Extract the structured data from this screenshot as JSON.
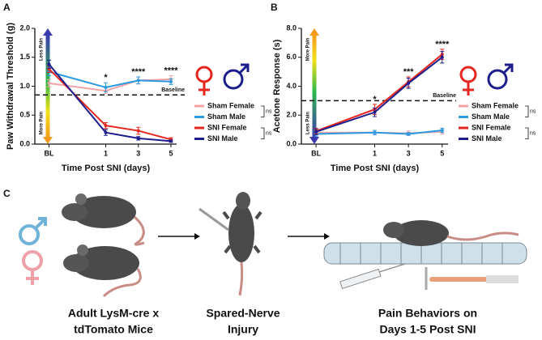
{
  "chart_data": [
    {
      "type": "line",
      "panel": "A",
      "ylabel": "Paw Withdrawal Threshold (g)",
      "xlabel": "Time Post SNI (days)",
      "categories": [
        "BL",
        "1",
        "3",
        "5"
      ],
      "ylim": [
        0,
        2
      ],
      "yticks": [
        {
          "value": 0,
          "label": "0.0"
        },
        0.5,
        {
          "value": 1,
          "label": "1.0"
        },
        1.5,
        {
          "value": 2,
          "label": "2.0"
        }
      ],
      "series": [
        {
          "name": "Sham Female",
          "color": "#f2a3a6",
          "values": [
            1.05,
            0.92,
            1.1,
            1.12
          ],
          "errors": [
            0.06,
            0.05,
            0.06,
            0.06
          ]
        },
        {
          "name": "Sham Male",
          "color": "#2b9ae0",
          "values": [
            1.25,
            0.98,
            1.1,
            1.08
          ],
          "errors": [
            0.07,
            0.08,
            0.06,
            0.05
          ]
        },
        {
          "name": "SNI Female",
          "color": "#e5261f",
          "values": [
            1.3,
            0.32,
            0.23,
            0.08
          ],
          "errors": [
            0.06,
            0.05,
            0.06,
            0.03
          ]
        },
        {
          "name": "SNI Male",
          "color": "#1d1d8c",
          "values": [
            1.38,
            0.2,
            0.1,
            0.05
          ],
          "errors": [
            0.07,
            0.05,
            0.03,
            0.02
          ]
        }
      ],
      "baseline": {
        "label": "Baseline",
        "value": 0.85
      },
      "annotations": [
        {
          "text": "*",
          "category": "1"
        },
        {
          "text": "****",
          "category": "3"
        },
        {
          "text": "****",
          "category": "5"
        }
      ],
      "arrow_labels": {
        "top": "Less Pain",
        "bottom": "More Pain"
      },
      "legend_brackets": [
        "ns",
        "ns"
      ]
    },
    {
      "type": "line",
      "panel": "B",
      "ylabel": "Acetone Response (s)",
      "xlabel": "Time Post SNI (days)",
      "categories": [
        "BL",
        "1",
        "3",
        "5"
      ],
      "ylim": [
        0,
        8
      ],
      "yticks": [
        {
          "value": 0,
          "label": "0.0"
        },
        {
          "value": 2,
          "label": "2.0"
        },
        {
          "value": 4,
          "label": "4.0"
        },
        {
          "value": 6,
          "label": "6.0"
        },
        {
          "value": 8,
          "label": "8.0"
        }
      ],
      "series": [
        {
          "name": "Sham Female",
          "color": "#f2a3a6",
          "values": [
            0.8,
            0.8,
            0.75,
            0.85
          ],
          "errors": [
            0.15,
            0.15,
            0.15,
            0.15
          ]
        },
        {
          "name": "Sham Male",
          "color": "#2b9ae0",
          "values": [
            0.7,
            0.8,
            0.7,
            0.95
          ],
          "errors": [
            0.15,
            0.15,
            0.1,
            0.15
          ]
        },
        {
          "name": "SNI Female",
          "color": "#e5261f",
          "values": [
            0.9,
            2.4,
            4.3,
            6.2
          ],
          "errors": [
            0.2,
            0.35,
            0.35,
            0.35
          ]
        },
        {
          "name": "SNI Male",
          "color": "#1d1d8c",
          "values": [
            0.85,
            2.2,
            4.2,
            6.0
          ],
          "errors": [
            0.2,
            0.3,
            0.35,
            0.4
          ]
        }
      ],
      "baseline": {
        "label": "Baseline",
        "value": 3
      },
      "annotations": [
        {
          "text": "*",
          "category": "1"
        },
        {
          "text": "***",
          "category": "3"
        },
        {
          "text": "****",
          "category": "5"
        }
      ],
      "arrow_labels": {
        "top": "More Pain",
        "bottom": "Less Pain"
      },
      "legend_brackets": [
        "ns",
        "ns"
      ]
    }
  ],
  "panel_c": {
    "panel": "C",
    "captions": [
      [
        "Adult LysM-cre x",
        "tdTomato Mice"
      ],
      [
        "Spared-Nerve",
        "Injury"
      ],
      [
        "Pain Behaviors on",
        "Days 1-5 Post SNI"
      ]
    ]
  }
}
